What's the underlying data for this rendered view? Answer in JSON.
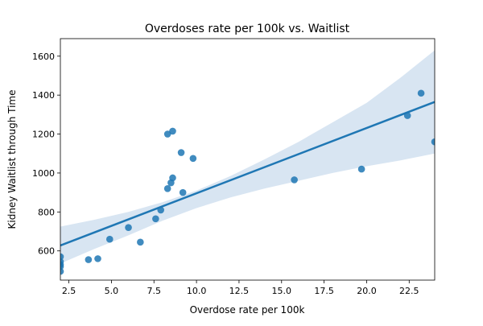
{
  "chart_data": {
    "type": "scatter",
    "title": "Overdoses rate per 100k vs. Waitlist",
    "xlabel": "Overdose rate per 100k",
    "ylabel": "Kidney Waitlist through Time",
    "xlim": [
      2.0,
      24.0
    ],
    "ylim": [
      450,
      1690
    ],
    "xticks": [
      2.5,
      5.0,
      7.5,
      10.0,
      12.5,
      15.0,
      17.5,
      20.0,
      22.5
    ],
    "xtick_labels": [
      "2.5",
      "5.0",
      "7.5",
      "10.0",
      "12.5",
      "15.0",
      "17.5",
      "20.0",
      "22.5"
    ],
    "yticks": [
      600,
      800,
      1000,
      1200,
      1400,
      1600
    ],
    "ytick_labels": [
      "600",
      "800",
      "1000",
      "1200",
      "1400",
      "1600"
    ],
    "grid": false,
    "legend": false,
    "colors": {
      "points": "#1f77b4",
      "line": "#1f77b4",
      "band": "#a9c6e3"
    },
    "points": [
      {
        "x": 2.0,
        "y": 570
      },
      {
        "x": 2.0,
        "y": 545
      },
      {
        "x": 2.0,
        "y": 530
      },
      {
        "x": 2.0,
        "y": 520
      },
      {
        "x": 2.0,
        "y": 495
      },
      {
        "x": 3.65,
        "y": 555
      },
      {
        "x": 4.2,
        "y": 560
      },
      {
        "x": 4.9,
        "y": 660
      },
      {
        "x": 6.0,
        "y": 720
      },
      {
        "x": 6.7,
        "y": 645
      },
      {
        "x": 7.6,
        "y": 765
      },
      {
        "x": 7.9,
        "y": 810
      },
      {
        "x": 8.3,
        "y": 920
      },
      {
        "x": 8.5,
        "y": 950
      },
      {
        "x": 8.6,
        "y": 975
      },
      {
        "x": 9.2,
        "y": 900
      },
      {
        "x": 8.3,
        "y": 1200
      },
      {
        "x": 8.6,
        "y": 1215
      },
      {
        "x": 9.1,
        "y": 1105
      },
      {
        "x": 9.8,
        "y": 1075
      },
      {
        "x": 15.75,
        "y": 965
      },
      {
        "x": 19.7,
        "y": 1020
      },
      {
        "x": 22.4,
        "y": 1295
      },
      {
        "x": 23.2,
        "y": 1410
      },
      {
        "x": 24.0,
        "y": 1160
      }
    ],
    "regression": {
      "line": [
        {
          "x": 2.0,
          "y": 628
        },
        {
          "x": 24.0,
          "y": 1365
        }
      ],
      "ci_upper": [
        {
          "x": 2.0,
          "y": 725
        },
        {
          "x": 4.0,
          "y": 760
        },
        {
          "x": 6.0,
          "y": 800
        },
        {
          "x": 8.0,
          "y": 850
        },
        {
          "x": 10.0,
          "y": 910
        },
        {
          "x": 12.0,
          "y": 985
        },
        {
          "x": 14.0,
          "y": 1070
        },
        {
          "x": 16.0,
          "y": 1160
        },
        {
          "x": 18.0,
          "y": 1260
        },
        {
          "x": 20.0,
          "y": 1360
        },
        {
          "x": 22.0,
          "y": 1490
        },
        {
          "x": 24.0,
          "y": 1630
        }
      ],
      "ci_lower": [
        {
          "x": 2.0,
          "y": 535
        },
        {
          "x": 4.0,
          "y": 610
        },
        {
          "x": 6.0,
          "y": 680
        },
        {
          "x": 8.0,
          "y": 755
        },
        {
          "x": 10.0,
          "y": 820
        },
        {
          "x": 12.0,
          "y": 875
        },
        {
          "x": 14.0,
          "y": 920
        },
        {
          "x": 16.0,
          "y": 960
        },
        {
          "x": 18.0,
          "y": 1000
        },
        {
          "x": 20.0,
          "y": 1035
        },
        {
          "x": 22.0,
          "y": 1065
        },
        {
          "x": 24.0,
          "y": 1100
        }
      ]
    }
  }
}
